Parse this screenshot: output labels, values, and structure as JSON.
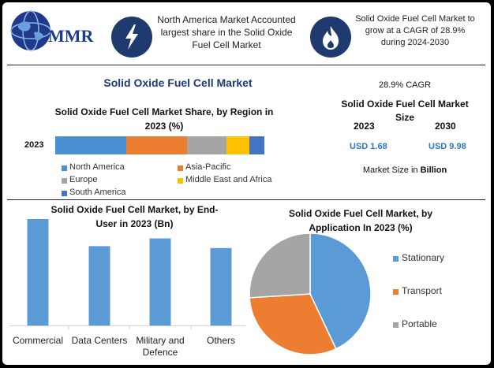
{
  "brand": {
    "logo_text": "MMR",
    "globe_icon": "globe-logo-icon",
    "navy": "#1f3a6e"
  },
  "header": {
    "box1_icon": "lightning-bolt-icon",
    "box1_text": "North America Market Accounted largest share in the Solid Oxide Fuel Cell Market",
    "box2_icon": "flame-icon",
    "box2_text": "Solid Oxide Fuel Cell Market to grow at a CAGR of 28.9% during 2024-2030"
  },
  "main_title": "Solid Oxide Fuel Cell Market",
  "market_size": {
    "cagr": "28.9% CAGR",
    "title": "Solid Oxide Fuel Cell Market Size",
    "year_a": "2023",
    "year_b": "2030",
    "value_a": "USD 1.68",
    "value_b": "USD 9.98",
    "note_prefix": "Market Size in ",
    "note_unit": "Billion",
    "value_color": "#2b79c2"
  },
  "chart_data": [
    {
      "type": "bar",
      "orientation": "horizontal-stacked",
      "title": "Solid Oxide Fuel Cell Market Share, by Region in 2023 (%)",
      "categories": [
        "2023"
      ],
      "series": [
        {
          "name": "North America",
          "values": [
            34
          ],
          "color": "#4a90d0"
        },
        {
          "name": "Asia-Pacific",
          "values": [
            29
          ],
          "color": "#ed7d31"
        },
        {
          "name": "Europe",
          "values": [
            19
          ],
          "color": "#a5a5a5"
        },
        {
          "name": "Middle East and Africa",
          "values": [
            11
          ],
          "color": "#ffc000"
        },
        {
          "name": "South America",
          "values": [
            7
          ],
          "color": "#4472c4"
        }
      ],
      "legend": "bottom",
      "grid": false
    },
    {
      "type": "bar",
      "title": "Solid Oxide Fuel Cell Market, by End-User in 2023 (Bn)",
      "categories": [
        "Commercial",
        "Data Centers",
        "Military and Defence",
        "Others"
      ],
      "values": [
        0.55,
        0.41,
        0.45,
        0.4
      ],
      "color": "#5b9bd5",
      "grid": false
    },
    {
      "type": "pie",
      "title": "Solid Oxide Fuel Cell Market, by Application In 2023 (%)",
      "categories": [
        "Stationary",
        "Transport",
        "Portable"
      ],
      "values": [
        43,
        31,
        26
      ],
      "colors": [
        "#5b9bd5",
        "#ed7d31",
        "#a5a5a5"
      ],
      "legend": "right"
    }
  ]
}
